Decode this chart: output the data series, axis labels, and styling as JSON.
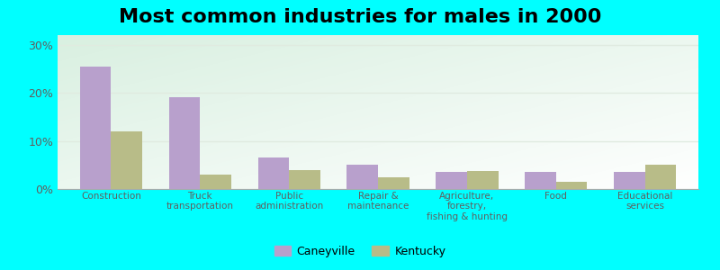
{
  "title": "Most common industries for males in 2000",
  "categories": [
    "Construction",
    "Truck\ntransportation",
    "Public\nadministration",
    "Repair &\nmaintenance",
    "Agriculture,\nforestry,\nfishing & hunting",
    "Food",
    "Educational\nservices"
  ],
  "caneyville_values": [
    25.5,
    19.0,
    6.5,
    5.0,
    3.5,
    3.5,
    3.5
  ],
  "kentucky_values": [
    12.0,
    3.0,
    4.0,
    2.5,
    3.7,
    1.5,
    5.0
  ],
  "caneyville_color": "#b8a0cc",
  "kentucky_color": "#b8bc88",
  "ylim": [
    0,
    32
  ],
  "yticks": [
    0,
    10,
    20,
    30
  ],
  "ytick_labels": [
    "0%",
    "10%",
    "20%",
    "30%"
  ],
  "bg_topleft": "#d8ede0",
  "bg_topright": "#f0f8f0",
  "bg_bottomleft": "#c8e8d8",
  "bg_bottomright": "#f8fff8",
  "outer_background": "#00ffff",
  "legend_caneyville": "Caneyville",
  "legend_kentucky": "Kentucky",
  "bar_width": 0.35,
  "title_fontsize": 16,
  "grid_color": "#e0ebe0"
}
